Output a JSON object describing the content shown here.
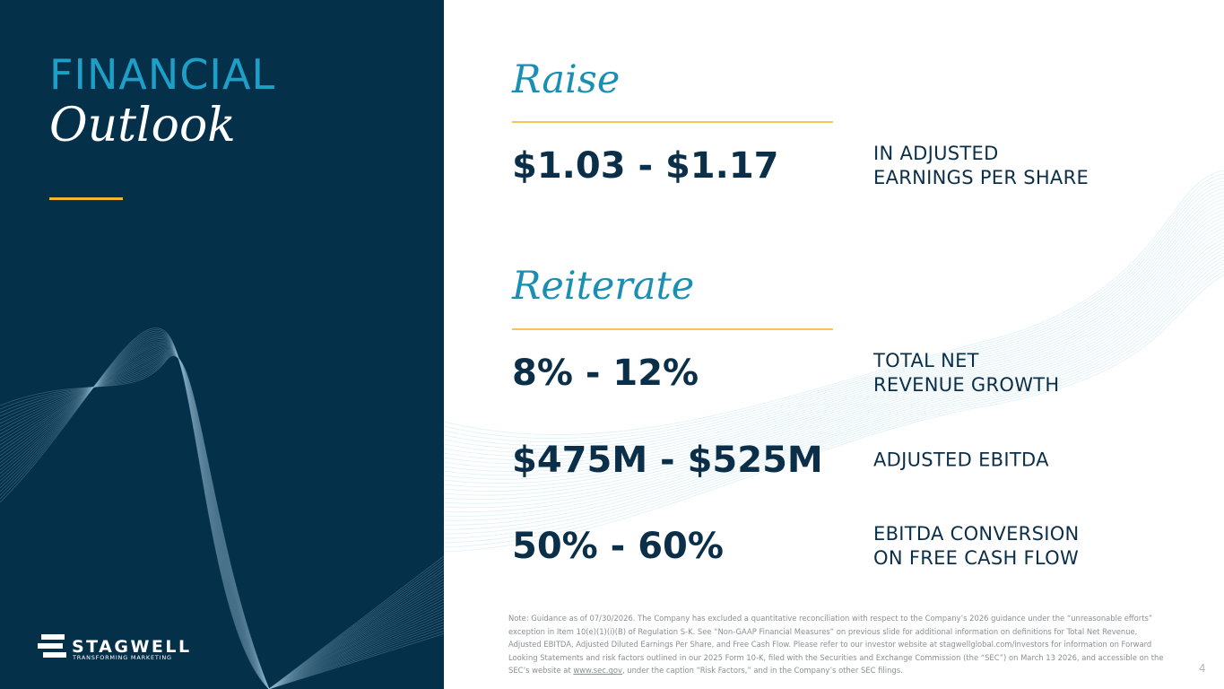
{
  "header": {
    "title_line1": "FINANCIAL",
    "title_line2": "Outlook"
  },
  "raise": {
    "heading": "Raise",
    "items": [
      {
        "figure": "$1.03 - $1.17",
        "label": "IN ADJUSTED\nEARNINGS PER SHARE"
      }
    ]
  },
  "reiterate": {
    "heading": "Reiterate",
    "items": [
      {
        "figure": "8% - 12%",
        "label": "TOTAL NET\nREVENUE GROWTH"
      },
      {
        "figure": "$475M - $525M",
        "label": "ADJUSTED EBITDA"
      },
      {
        "figure": "50% - 60%",
        "label": "EBITDA CONVERSION\nON FREE CASH FLOW"
      }
    ]
  },
  "note": {
    "text": "Note: Guidance as of 07/30/2026. The Company has excluded a quantitative reconciliation with respect to the Company’s 2026 guidance under the “unreasonable efforts” exception in Item 10(e)(1)(i)(B) of Regulation S-K. See “Non-GAAP Financial Measures” on previous slide for additional information on definitions for Total Net Revenue, Adjusted EBITDA, Adjusted Diluted Earnings Per Share, and Free Cash Flow. Please refer to our investor website at stagwellglobal.com/investors for information on Forward Looking Statements and risk factors outlined in our 2025 Form 10-K, filed with the Securities and Exchange Commission (the “SEC”) on March 13 2026, and accessible on the SEC’s website at ",
    "link": "www.sec.gov",
    "text_after": ", under the caption “Risk Factors,” and in the Company’s other SEC filings."
  },
  "logo": {
    "name": "STAGWELL",
    "tagline": "TRANSFORMING MARKETING"
  },
  "page_number": "4"
}
